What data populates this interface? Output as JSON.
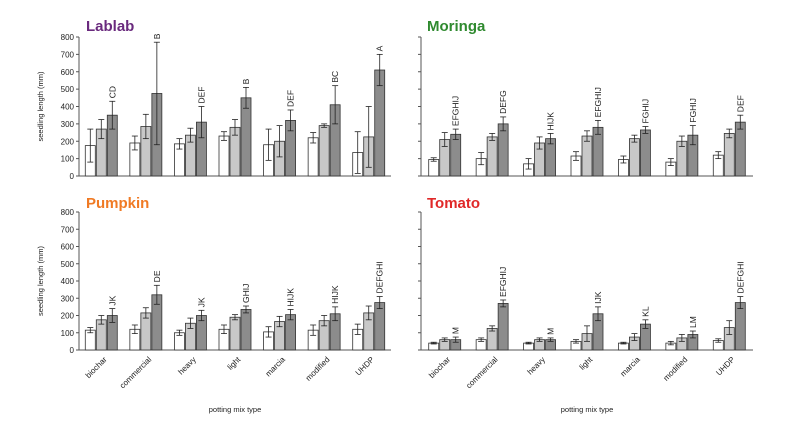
{
  "figure": {
    "ylabel": "seedling length (mm)",
    "xlabel": "potting mix type",
    "ticks": [
      "0",
      "100",
      "200",
      "300",
      "400",
      "500",
      "600",
      "700",
      "800"
    ],
    "colors": {
      "bar1": "#ffffff",
      "bar2": "#c8c8c8",
      "bar3": "#8c8c8c",
      "Lablab": "#6a2a7e",
      "Moringa": "#2f8a2f",
      "Pumpkin": "#f07a24",
      "Tomato": "#e02828"
    }
  },
  "chart_data": [
    {
      "type": "bar",
      "title": "Lablab",
      "categories": [
        "biochar",
        "commercial",
        "heavy",
        "light",
        "marcia",
        "modified",
        "UHDP"
      ],
      "ylim": [
        0,
        800
      ],
      "series": [
        {
          "values": [
            175,
            190,
            185,
            230,
            180,
            220,
            135
          ],
          "errors": [
            95,
            40,
            30,
            25,
            90,
            30,
            120
          ]
        },
        {
          "values": [
            270,
            285,
            235,
            280,
            200,
            290,
            225
          ],
          "errors": [
            55,
            70,
            40,
            45,
            90,
            10,
            175
          ]
        },
        {
          "values": [
            350,
            475,
            310,
            450,
            320,
            410,
            610
          ],
          "errors": [
            80,
            295,
            90,
            60,
            60,
            110,
            90
          ]
        }
      ],
      "significance": [
        "CD",
        "B",
        "DEF",
        "B",
        "DEF",
        "BC",
        "A"
      ]
    },
    {
      "type": "bar",
      "title": "Moringa",
      "categories": [
        "biochar",
        "commercial",
        "heavy",
        "light",
        "marcia",
        "modified",
        "UHDP"
      ],
      "ylim": [
        0,
        800
      ],
      "series": [
        {
          "values": [
            95,
            100,
            70,
            115,
            95,
            80,
            120
          ],
          "errors": [
            10,
            35,
            30,
            25,
            20,
            20,
            20
          ]
        },
        {
          "values": [
            210,
            225,
            190,
            230,
            215,
            200,
            245
          ],
          "errors": [
            40,
            20,
            35,
            30,
            20,
            30,
            25
          ]
        },
        {
          "values": [
            240,
            300,
            215,
            280,
            265,
            235,
            310
          ],
          "errors": [
            30,
            40,
            30,
            40,
            20,
            55,
            40
          ]
        }
      ],
      "significance": [
        "EFGHIJ",
        "DEFG",
        "HIJK",
        "EFGHIJ",
        "FGHIJ",
        "FGHIJ",
        "DEF"
      ]
    },
    {
      "type": "bar",
      "title": "Pumpkin",
      "categories": [
        "biochar",
        "commercial",
        "heavy",
        "light",
        "marcia",
        "modified",
        "UHDP"
      ],
      "ylim": [
        0,
        800
      ],
      "series": [
        {
          "values": [
            115,
            120,
            100,
            120,
            105,
            115,
            120
          ],
          "errors": [
            15,
            25,
            15,
            25,
            30,
            30,
            30
          ]
        },
        {
          "values": [
            175,
            215,
            155,
            190,
            165,
            170,
            215
          ],
          "errors": [
            25,
            30,
            30,
            15,
            30,
            30,
            40
          ]
        },
        {
          "values": [
            200,
            320,
            200,
            235,
            205,
            210,
            275
          ],
          "errors": [
            40,
            55,
            30,
            20,
            30,
            40,
            35
          ]
        }
      ],
      "significance": [
        "JK",
        "DE",
        "JK",
        "GHIJ",
        "HIJK",
        "HIJK",
        "DEFGHI"
      ]
    },
    {
      "type": "bar",
      "title": "Tomato",
      "categories": [
        "biochar",
        "commercial",
        "heavy",
        "light",
        "marcia",
        "modified",
        "UHDP"
      ],
      "ylim": [
        0,
        800
      ],
      "series": [
        {
          "values": [
            40,
            60,
            40,
            50,
            40,
            40,
            55
          ],
          "errors": [
            5,
            10,
            5,
            10,
            5,
            10,
            10
          ]
        },
        {
          "values": [
            60,
            125,
            60,
            95,
            75,
            70,
            130
          ],
          "errors": [
            10,
            15,
            10,
            45,
            20,
            20,
            40
          ]
        },
        {
          "values": [
            60,
            270,
            60,
            210,
            150,
            90,
            275
          ],
          "errors": [
            15,
            20,
            10,
            40,
            25,
            20,
            35
          ]
        }
      ],
      "significance": [
        "M",
        "EFGHIJ",
        "M",
        "IJK",
        "KL",
        "LM",
        "DEFGHI"
      ]
    }
  ]
}
